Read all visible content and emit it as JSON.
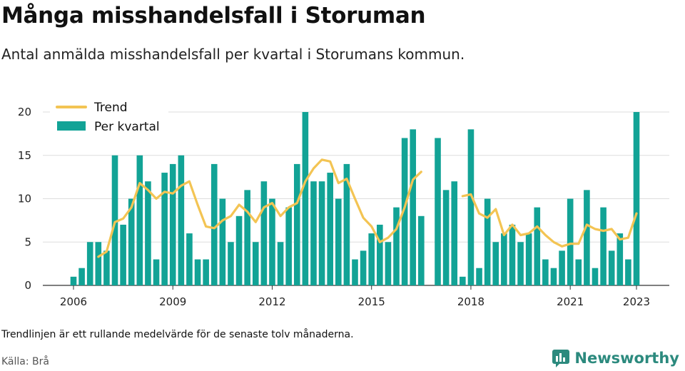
{
  "title": "Många misshandelsfall i Storuman",
  "subtitle": "Antal anmälda misshandelsfall per kvartal i Storumans kommun.",
  "note": "Trendlinjen är ett rullande medelvärde för de senaste tolv månaderna.",
  "source": "Källa: Brå",
  "brand": "Newsworthy",
  "colors": {
    "bar": "#12a396",
    "trend": "#f3c453",
    "grid": "#dddddd",
    "brand": "#2c8a7e"
  },
  "chart_data": {
    "type": "bar",
    "ylim": [
      0,
      20
    ],
    "y_ticks": [
      0,
      5,
      10,
      15,
      20
    ],
    "x_ticks": [
      {
        "label": "2006",
        "x": 2006.0
      },
      {
        "label": "2009",
        "x": 2009.0
      },
      {
        "label": "2012",
        "x": 2012.0
      },
      {
        "label": "2015",
        "x": 2015.0
      },
      {
        "label": "2018",
        "x": 2018.0
      },
      {
        "label": "2021",
        "x": 2021.0
      },
      {
        "label": "2023",
        "x": 2023.0
      }
    ],
    "legend_position": "top-left",
    "grid": true,
    "series": [
      {
        "name": "Per kvartal",
        "type": "bar",
        "x": [
          2006.0,
          2006.25,
          2006.5,
          2006.75,
          2007.0,
          2007.25,
          2007.5,
          2007.75,
          2008.0,
          2008.25,
          2008.5,
          2008.75,
          2009.0,
          2009.25,
          2009.5,
          2009.75,
          2010.0,
          2010.25,
          2010.5,
          2010.75,
          2011.0,
          2011.25,
          2011.5,
          2011.75,
          2012.0,
          2012.25,
          2012.5,
          2012.75,
          2013.0,
          2013.25,
          2013.5,
          2013.75,
          2014.0,
          2014.25,
          2014.5,
          2014.75,
          2015.0,
          2015.25,
          2015.5,
          2015.75,
          2016.0,
          2016.25,
          2016.5,
          2016.75,
          2017.0,
          2017.25,
          2017.5,
          2017.75,
          2018.0,
          2018.25,
          2018.5,
          2018.75,
          2019.0,
          2019.25,
          2019.5,
          2019.75,
          2020.0,
          2020.25,
          2020.5,
          2020.75,
          2021.0,
          2021.25,
          2021.5,
          2021.75,
          2022.0,
          2022.25,
          2022.5,
          2022.75,
          2023.0
        ],
        "values": [
          1,
          2,
          5,
          5,
          4,
          15,
          7,
          10,
          15,
          12,
          3,
          13,
          14,
          15,
          6,
          3,
          3,
          14,
          10,
          5,
          8,
          11,
          5,
          12,
          10,
          5,
          9,
          14,
          20,
          12,
          12,
          13,
          10,
          14,
          3,
          4,
          6,
          7,
          5,
          9,
          17,
          18,
          8,
          0,
          17,
          11,
          12,
          1,
          18,
          2,
          10,
          5,
          6,
          7,
          5,
          6,
          9,
          3,
          2,
          4,
          10,
          3,
          11,
          2,
          9,
          4,
          6,
          3,
          20
        ]
      },
      {
        "name": "Trend",
        "type": "line",
        "segments": [
          {
            "x": [
              2006.75,
              2007.0,
              2007.25,
              2007.5,
              2007.75,
              2008.0,
              2008.25,
              2008.5,
              2008.75,
              2009.0,
              2009.25,
              2009.5,
              2009.75,
              2010.0,
              2010.25,
              2010.5,
              2010.75,
              2011.0,
              2011.25,
              2011.5,
              2011.75,
              2012.0,
              2012.25,
              2012.5,
              2012.75,
              2013.0,
              2013.25,
              2013.5,
              2013.75,
              2014.0,
              2014.25,
              2014.5,
              2014.75,
              2015.0,
              2015.25,
              2015.5,
              2015.75,
              2016.0,
              2016.25,
              2016.5
            ],
            "values": [
              3.3,
              3.9,
              7.3,
              7.7,
              9.0,
              11.8,
              11.0,
              10.0,
              10.8,
              10.6,
              11.5,
              12.0,
              9.3,
              6.8,
              6.6,
              7.5,
              8.0,
              9.3,
              8.5,
              7.3,
              9.0,
              9.5,
              8.0,
              9.0,
              9.5,
              12.0,
              13.5,
              14.5,
              14.3,
              11.8,
              12.3,
              10.0,
              7.8,
              6.8,
              5.0,
              5.5,
              6.5,
              9.0,
              12.2,
              13.1
            ]
          },
          {
            "x": [
              2017.75,
              2018.0,
              2018.25,
              2018.5,
              2018.75,
              2019.0,
              2019.25,
              2019.5,
              2019.75,
              2020.0,
              2020.25,
              2020.5,
              2020.75,
              2021.0,
              2021.25,
              2021.5,
              2021.75,
              2022.0,
              2022.25,
              2022.5,
              2022.75,
              2023.0
            ],
            "values": [
              10.3,
              10.5,
              8.3,
              7.8,
              8.8,
              5.8,
              7.0,
              5.8,
              6.0,
              6.8,
              5.8,
              5.0,
              4.5,
              4.8,
              4.8,
              7.0,
              6.5,
              6.3,
              6.5,
              5.3,
              5.5,
              8.3
            ]
          }
        ]
      }
    ]
  }
}
